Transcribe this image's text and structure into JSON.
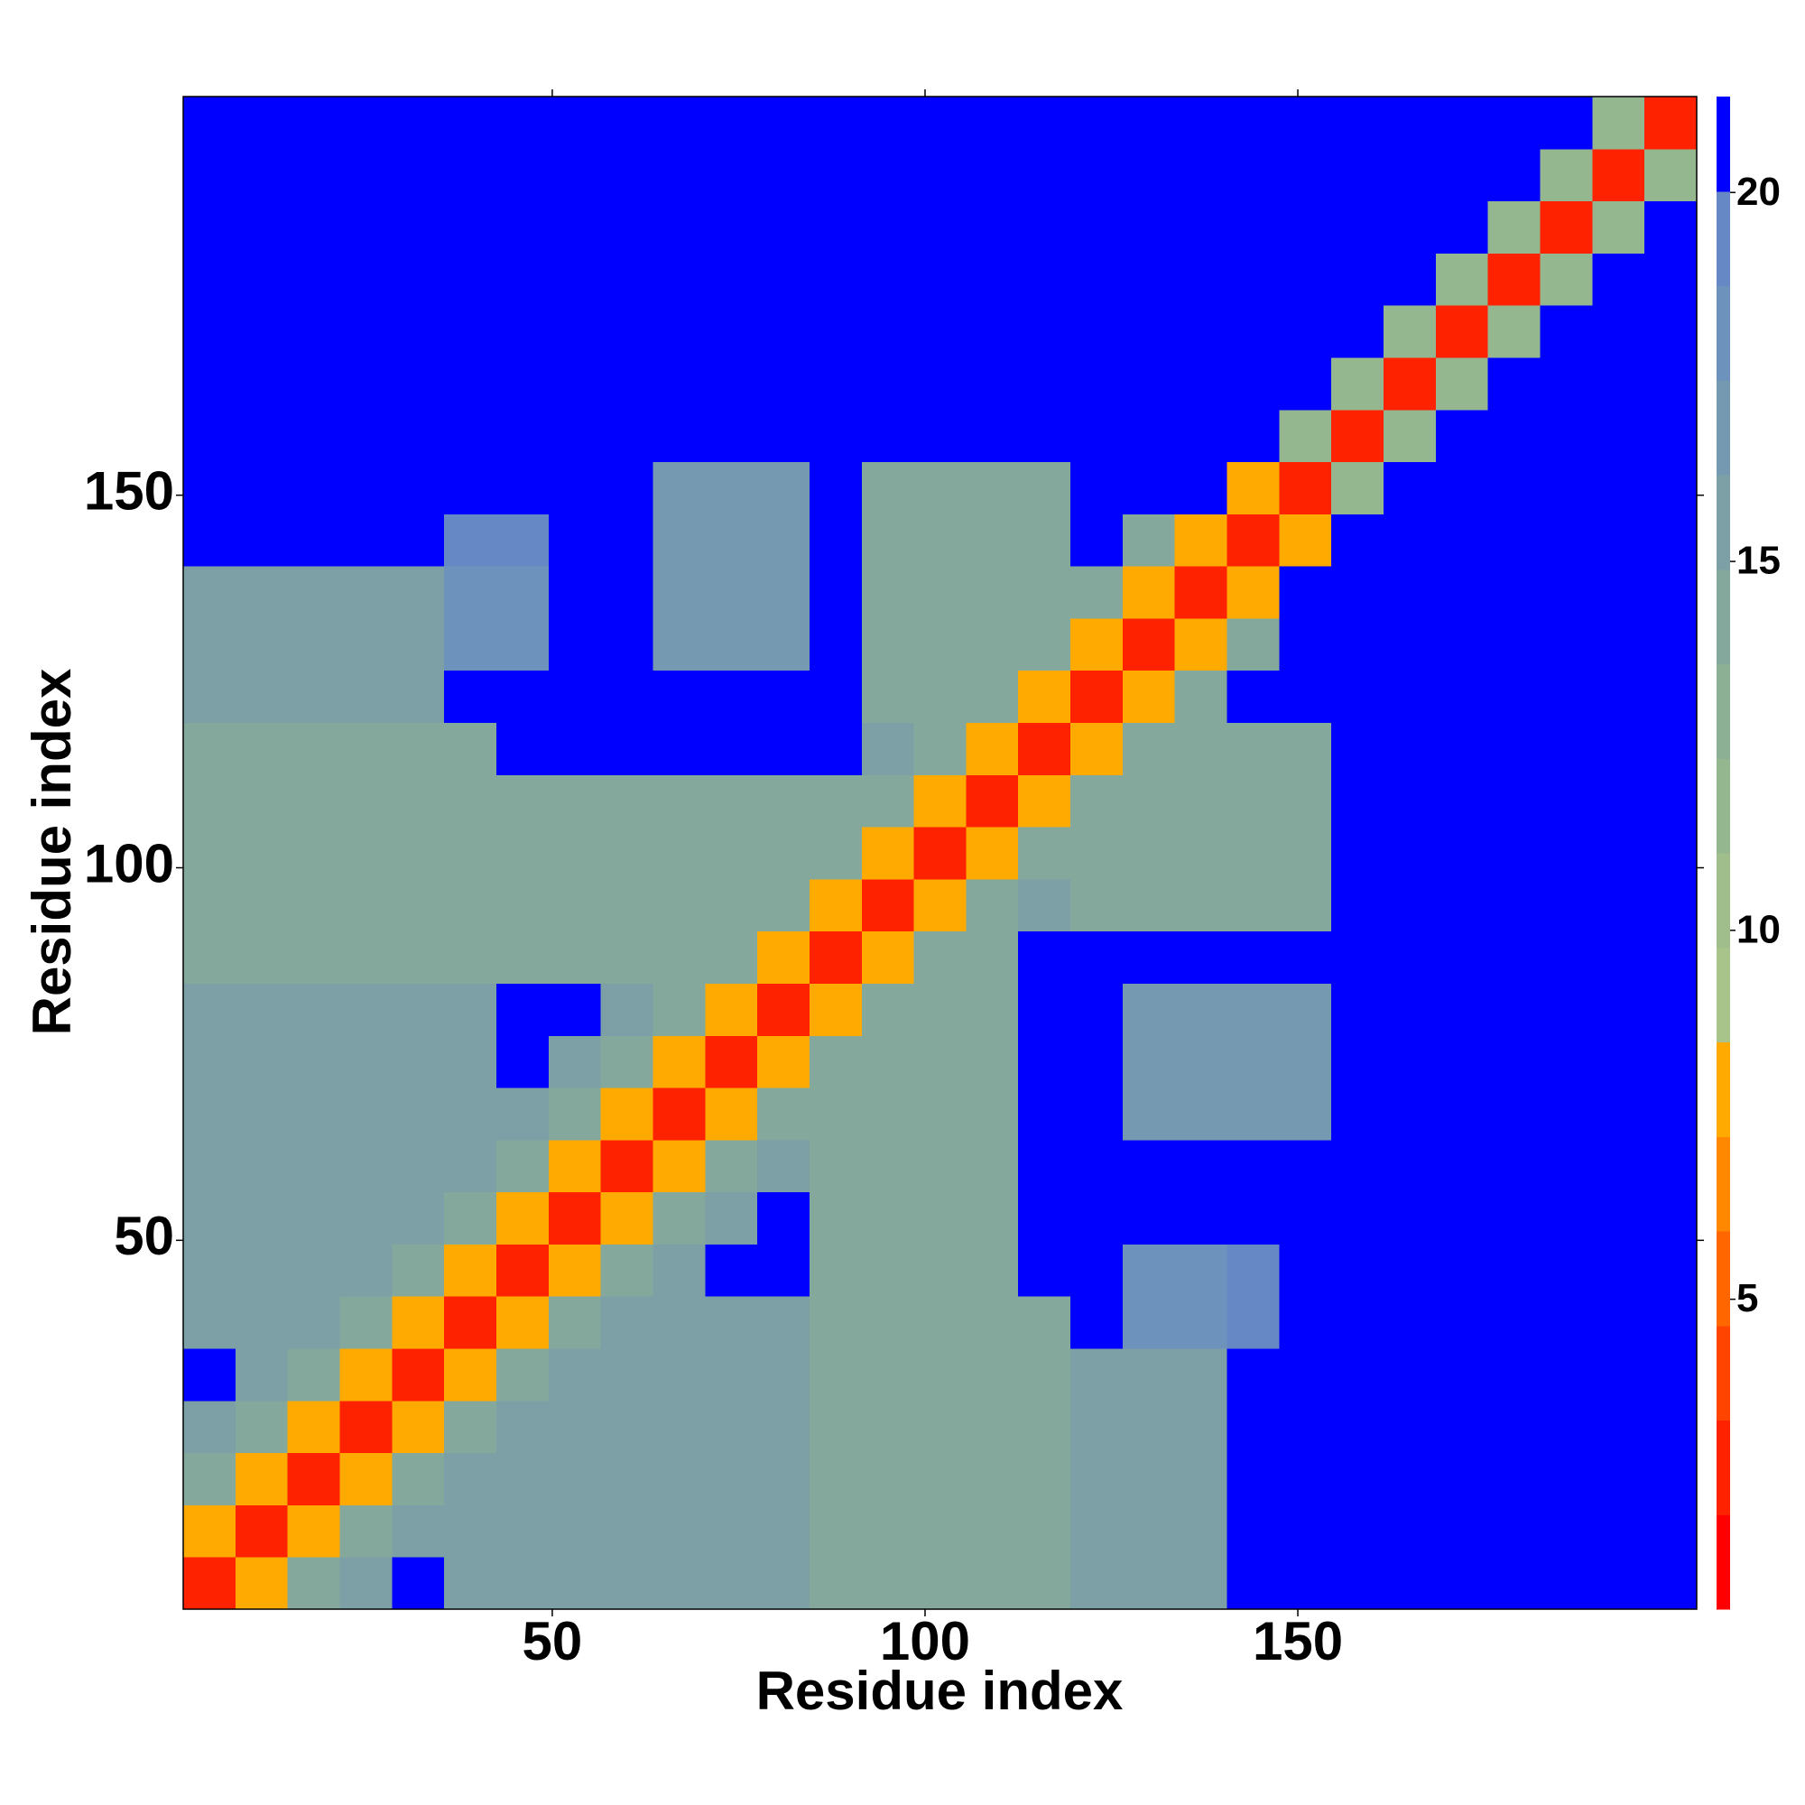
{
  "chart_data": {
    "type": "heatmap",
    "xlabel": "Residue index",
    "ylabel": "Residue index",
    "x_bins": [
      0.5,
      7.5,
      14.5,
      21.5,
      28.5,
      35.5,
      42.5,
      49.5,
      56.5,
      63.5,
      70.5,
      77.5,
      84.5,
      91.5,
      98.5,
      105.5,
      112.5,
      119.5,
      126.5,
      133.5,
      140.5,
      147.5,
      154.5,
      161.5,
      168.5,
      175.5,
      182.5,
      189.5,
      196.5,
      203.5
    ],
    "y_bins": [
      0.5,
      7.5,
      14.5,
      21.5,
      28.5,
      35.5,
      42.5,
      49.5,
      56.5,
      63.5,
      70.5,
      77.5,
      84.5,
      91.5,
      98.5,
      105.5,
      112.5,
      119.5,
      126.5,
      133.5,
      140.5,
      147.5,
      154.5,
      161.5,
      168.5,
      175.5,
      182.5,
      189.5,
      196.5,
      203.5
    ],
    "z": [
      [
        3,
        8,
        14,
        16,
        21,
        15,
        15,
        15,
        15,
        16,
        16,
        16,
        14,
        14,
        14,
        14,
        14,
        15,
        15,
        15,
        21,
        21,
        21,
        21,
        21,
        21,
        21,
        21,
        21
      ],
      [
        8,
        3,
        8,
        14,
        16,
        15,
        15,
        15,
        15,
        16,
        16,
        16,
        14,
        14,
        14,
        14,
        14,
        15,
        15,
        15,
        21,
        21,
        21,
        21,
        21,
        21,
        21,
        21,
        21
      ],
      [
        14,
        8,
        3,
        8,
        14,
        15,
        15,
        15,
        15,
        16,
        16,
        16,
        14,
        14,
        14,
        14,
        14,
        15,
        15,
        15,
        21,
        21,
        21,
        21,
        21,
        21,
        21,
        21,
        21
      ],
      [
        16,
        14,
        8,
        3,
        8,
        14,
        15,
        15,
        15,
        16,
        16,
        16,
        14,
        14,
        14,
        14,
        14,
        15,
        15,
        15,
        21,
        21,
        21,
        21,
        21,
        21,
        21,
        21,
        21
      ],
      [
        21,
        16,
        14,
        8,
        3,
        8,
        14,
        15,
        15,
        16,
        16,
        16,
        14,
        14,
        14,
        14,
        14,
        15,
        15,
        15,
        21,
        21,
        21,
        21,
        21,
        21,
        21,
        21,
        21
      ],
      [
        15,
        15,
        15,
        14,
        8,
        3,
        8,
        14,
        16,
        16,
        16,
        16,
        14,
        14,
        14,
        14,
        14,
        21,
        18,
        18,
        19,
        21,
        21,
        21,
        21,
        21,
        21,
        21,
        21
      ],
      [
        15,
        15,
        15,
        15,
        14,
        8,
        3,
        8,
        14,
        16,
        21,
        21,
        14,
        14,
        14,
        14,
        21,
        21,
        18,
        18,
        19,
        21,
        21,
        21,
        21,
        21,
        21,
        21,
        21
      ],
      [
        15,
        15,
        15,
        15,
        15,
        14,
        8,
        3,
        8,
        14,
        16,
        21,
        14,
        14,
        14,
        14,
        21,
        21,
        21,
        21,
        21,
        21,
        21,
        21,
        21,
        21,
        21,
        21,
        21
      ],
      [
        15,
        15,
        15,
        15,
        15,
        16,
        14,
        8,
        3,
        8,
        14,
        16,
        14,
        14,
        14,
        14,
        21,
        21,
        21,
        21,
        21,
        21,
        21,
        21,
        21,
        21,
        21,
        21,
        21
      ],
      [
        16,
        16,
        16,
        16,
        16,
        16,
        16,
        14,
        8,
        3,
        8,
        14,
        14,
        14,
        14,
        14,
        21,
        21,
        17,
        17,
        17,
        17,
        21,
        21,
        21,
        21,
        21,
        21,
        21
      ],
      [
        16,
        16,
        16,
        16,
        16,
        16,
        21,
        16,
        14,
        8,
        3,
        8,
        14,
        14,
        14,
        14,
        21,
        21,
        17,
        17,
        17,
        17,
        21,
        21,
        21,
        21,
        21,
        21,
        21
      ],
      [
        16,
        16,
        16,
        16,
        16,
        16,
        21,
        21,
        16,
        14,
        8,
        3,
        8,
        14,
        14,
        14,
        21,
        21,
        17,
        17,
        17,
        17,
        21,
        21,
        21,
        21,
        21,
        21,
        21
      ],
      [
        14,
        14,
        14,
        14,
        14,
        14,
        14,
        14,
        14,
        14,
        14,
        8,
        3,
        8,
        14,
        14,
        21,
        21,
        21,
        21,
        21,
        21,
        21,
        21,
        21,
        21,
        21,
        21,
        21
      ],
      [
        14,
        14,
        14,
        14,
        14,
        14,
        14,
        14,
        14,
        14,
        14,
        14,
        8,
        3,
        8,
        14,
        16,
        14,
        14,
        14,
        14,
        14,
        21,
        21,
        21,
        21,
        21,
        21,
        21
      ],
      [
        14,
        14,
        14,
        14,
        14,
        14,
        14,
        14,
        14,
        14,
        14,
        14,
        14,
        8,
        3,
        8,
        14,
        14,
        14,
        14,
        14,
        14,
        21,
        21,
        21,
        21,
        21,
        21,
        21
      ],
      [
        14,
        14,
        14,
        14,
        14,
        14,
        14,
        14,
        14,
        14,
        14,
        14,
        14,
        14,
        8,
        3,
        8,
        14,
        14,
        14,
        14,
        14,
        21,
        21,
        21,
        21,
        21,
        21,
        21
      ],
      [
        14,
        14,
        14,
        14,
        14,
        14,
        21,
        21,
        21,
        21,
        21,
        21,
        21,
        16,
        14,
        8,
        3,
        8,
        14,
        14,
        14,
        14,
        21,
        21,
        21,
        21,
        21,
        21,
        21
      ],
      [
        15,
        15,
        15,
        15,
        15,
        21,
        21,
        21,
        21,
        21,
        21,
        21,
        21,
        14,
        14,
        14,
        8,
        3,
        8,
        14,
        21,
        21,
        21,
        21,
        21,
        21,
        21,
        21,
        21
      ],
      [
        15,
        15,
        15,
        15,
        15,
        18,
        18,
        21,
        21,
        17,
        17,
        17,
        21,
        14,
        14,
        14,
        14,
        8,
        3,
        8,
        14,
        21,
        21,
        21,
        21,
        21,
        21,
        21,
        21
      ],
      [
        15,
        15,
        15,
        15,
        15,
        18,
        18,
        21,
        21,
        17,
        17,
        17,
        21,
        14,
        14,
        14,
        14,
        14,
        8,
        3,
        8,
        21,
        21,
        21,
        21,
        21,
        21,
        21,
        21
      ],
      [
        21,
        21,
        21,
        21,
        21,
        19,
        19,
        21,
        21,
        17,
        17,
        17,
        21,
        14,
        14,
        14,
        14,
        21,
        14,
        8,
        3,
        8,
        21,
        21,
        21,
        21,
        21,
        21,
        21
      ],
      [
        21,
        21,
        21,
        21,
        21,
        21,
        21,
        21,
        21,
        17,
        17,
        17,
        21,
        14,
        14,
        14,
        14,
        21,
        21,
        21,
        8,
        3,
        12,
        21,
        21,
        21,
        21,
        21,
        21
      ],
      [
        21,
        21,
        21,
        21,
        21,
        21,
        21,
        21,
        21,
        21,
        21,
        21,
        21,
        21,
        21,
        21,
        21,
        21,
        21,
        21,
        21,
        12,
        3,
        12,
        21,
        21,
        21,
        21,
        21
      ],
      [
        21,
        21,
        21,
        21,
        21,
        21,
        21,
        21,
        21,
        21,
        21,
        21,
        21,
        21,
        21,
        21,
        21,
        21,
        21,
        21,
        21,
        21,
        12,
        3,
        12,
        21,
        21,
        21,
        21
      ],
      [
        21,
        21,
        21,
        21,
        21,
        21,
        21,
        21,
        21,
        21,
        21,
        21,
        21,
        21,
        21,
        21,
        21,
        21,
        21,
        21,
        21,
        21,
        21,
        12,
        3,
        12,
        21,
        21,
        21
      ],
      [
        21,
        21,
        21,
        21,
        21,
        21,
        21,
        21,
        21,
        21,
        21,
        21,
        21,
        21,
        21,
        21,
        21,
        21,
        21,
        21,
        21,
        21,
        21,
        21,
        12,
        3,
        12,
        21,
        21
      ],
      [
        21,
        21,
        21,
        21,
        21,
        21,
        21,
        21,
        21,
        21,
        21,
        21,
        21,
        21,
        21,
        21,
        21,
        21,
        21,
        21,
        21,
        21,
        21,
        21,
        21,
        12,
        3,
        12,
        21
      ],
      [
        21,
        21,
        21,
        21,
        21,
        21,
        21,
        21,
        21,
        21,
        21,
        21,
        21,
        21,
        21,
        21,
        21,
        21,
        21,
        21,
        21,
        21,
        21,
        21,
        21,
        21,
        12,
        3,
        12
      ],
      [
        21,
        21,
        21,
        21,
        21,
        21,
        21,
        21,
        21,
        21,
        21,
        21,
        21,
        21,
        21,
        21,
        21,
        21,
        21,
        21,
        21,
        21,
        21,
        21,
        21,
        21,
        21,
        12,
        3
      ]
    ],
    "xlim": [
      0.5,
      203.5
    ],
    "ylim": [
      0.5,
      203.5
    ],
    "xticks": [
      50,
      100,
      150
    ],
    "yticks": [
      50,
      100,
      150
    ],
    "colorbar": {
      "clim": [
        0.8,
        21.3
      ],
      "ticks": [
        5,
        10,
        15,
        20
      ],
      "colors": [
        "#ff0000",
        "#ff2200",
        "#ff4400",
        "#ff6600",
        "#ff8800",
        "#ffaa00",
        "#a9c48a",
        "#9fbe8c",
        "#95b78f",
        "#8cb094",
        "#84a89c",
        "#7ca0a6",
        "#7499b1",
        "#6d92bb",
        "#6689c5",
        "#0000ff"
      ]
    }
  }
}
